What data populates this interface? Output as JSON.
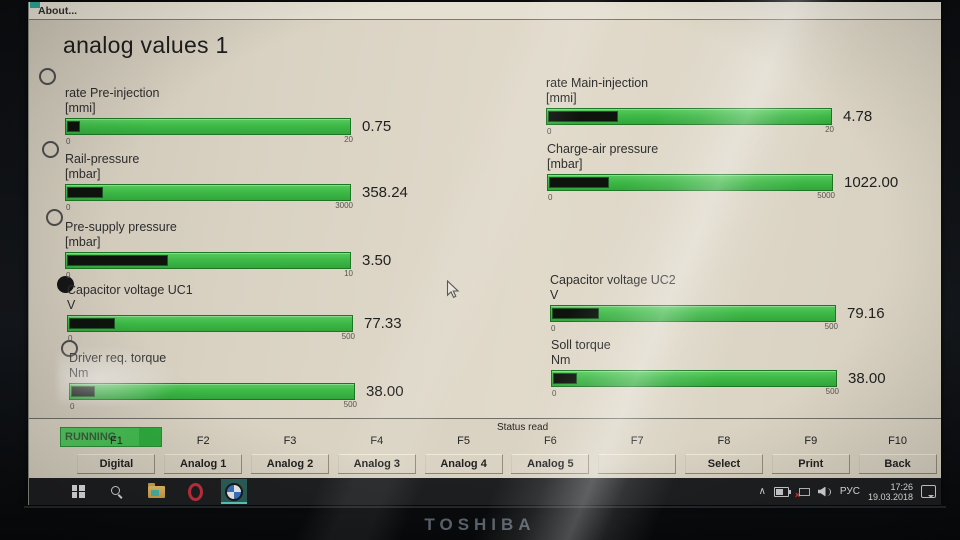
{
  "window": {
    "menu": {
      "about_label": "About..."
    },
    "title": "analog values 1"
  },
  "gauges": [
    {
      "label": "rate Pre-injection",
      "unit": "[mmi]",
      "value": "0.75",
      "value_num": 0.75,
      "min": "0",
      "max": "20",
      "max_num": 20
    },
    {
      "label": "Rail-pressure",
      "unit": "[mbar]",
      "value": "358.24",
      "value_num": 358.24,
      "min": "0",
      "max": "3000",
      "max_num": 3000
    },
    {
      "label": "Pre-supply pressure",
      "unit": "[mbar]",
      "value": "3.50",
      "value_num": 3.5,
      "min": "0",
      "max": "10",
      "max_num": 10
    },
    {
      "label": "Capacitor voltage UC1",
      "unit": "V",
      "value": "77.33",
      "value_num": 77.33,
      "min": "0",
      "max": "500",
      "max_num": 500
    },
    {
      "label": "Driver req. torque",
      "unit": "Nm",
      "value": "38.00",
      "value_num": 38,
      "min": "0",
      "max": "500",
      "max_num": 500
    },
    {
      "label": "rate Main-injection",
      "unit": "[mmi]",
      "value": "4.78",
      "value_num": 4.78,
      "min": "0",
      "max": "20",
      "max_num": 20
    },
    {
      "label": "Charge-air pressure",
      "unit": "[mbar]",
      "value": "1022.00",
      "value_num": 1022,
      "min": "0",
      "max": "5000",
      "max_num": 5000
    },
    {
      "label": "Capacitor voltage UC2",
      "unit": "V",
      "value": "79.16",
      "value_num": 79.16,
      "min": "0",
      "max": "500",
      "max_num": 500
    },
    {
      "label": "Soll torque",
      "unit": "Nm",
      "value": "38.00",
      "value_num": 38,
      "min": "0",
      "max": "500",
      "max_num": 500
    }
  ],
  "row_markers": [
    "empty",
    "empty",
    "empty",
    "filled",
    "empty"
  ],
  "status_bar": {
    "label": "Status read",
    "running": "RUNNING"
  },
  "function_keys": [
    {
      "key": "F1",
      "label": "Digital"
    },
    {
      "key": "F2",
      "label": "Analog 1"
    },
    {
      "key": "F3",
      "label": "Analog 2"
    },
    {
      "key": "F4",
      "label": "Analog 3"
    },
    {
      "key": "F5",
      "label": "Analog 4"
    },
    {
      "key": "F6",
      "label": "Analog 5"
    },
    {
      "key": "F7",
      "label": ""
    },
    {
      "key": "F8",
      "label": "Select"
    },
    {
      "key": "F9",
      "label": "Print"
    },
    {
      "key": "F10",
      "label": "Back"
    }
  ],
  "taskbar": {
    "icons": [
      "windows-start",
      "search",
      "file-explorer",
      "opera-browser",
      "bmw-diagnostic-app"
    ],
    "tray_icons": [
      "chevron-up",
      "battery",
      "network-disconnected",
      "speaker",
      "language",
      "clock",
      "action-center"
    ],
    "language": "РУС",
    "time": "17:26",
    "date": "19.03.2018"
  },
  "device_brand": "TOSHIBA",
  "colors": {
    "gauge_green": "#3eb947",
    "gauge_fill_dark": "#0e130e",
    "running_green": "#43bd50",
    "screen_beige": "#d9d2c3",
    "taskbar_dark": "#1e1f21"
  }
}
